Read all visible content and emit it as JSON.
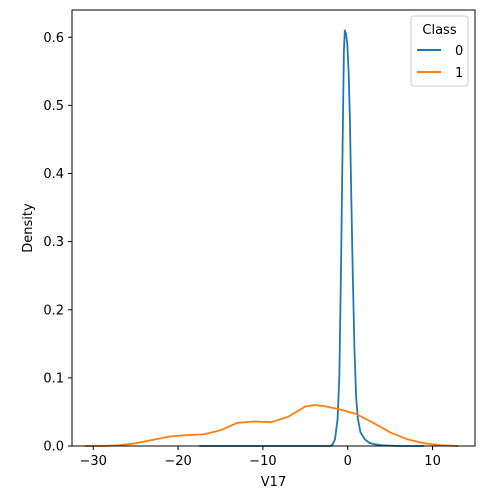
{
  "chart_data": {
    "type": "line",
    "title": "",
    "xlabel": "V17",
    "ylabel": "Density",
    "xlim": [
      -32.5,
      15.0
    ],
    "ylim": [
      0,
      0.64
    ],
    "xticks": [
      -30,
      -20,
      -10,
      0,
      10
    ],
    "xtick_labels": [
      "−30",
      "−20",
      "−10",
      "0",
      "10"
    ],
    "yticks": [
      0.0,
      0.1,
      0.2,
      0.3,
      0.4,
      0.5,
      0.6
    ],
    "ytick_labels": [
      "0.0",
      "0.1",
      "0.2",
      "0.3",
      "0.4",
      "0.5",
      "0.6"
    ],
    "grid": false,
    "legend": {
      "title": "Class",
      "placement": "top-right"
    },
    "series": [
      {
        "name": "0",
        "color": "#1f77b4",
        "points": [
          [
            -17.5,
            0.0
          ],
          [
            -10,
            0.0
          ],
          [
            -5,
            0.0
          ],
          [
            -2.0,
            0.0
          ],
          [
            -1.8,
            0.002
          ],
          [
            -1.5,
            0.01
          ],
          [
            -1.2,
            0.04
          ],
          [
            -1.0,
            0.1
          ],
          [
            -0.8,
            0.25
          ],
          [
            -0.6,
            0.44
          ],
          [
            -0.45,
            0.58
          ],
          [
            -0.35,
            0.61
          ],
          [
            -0.2,
            0.605
          ],
          [
            -0.05,
            0.59
          ],
          [
            0.1,
            0.55
          ],
          [
            0.25,
            0.48
          ],
          [
            0.4,
            0.38
          ],
          [
            0.6,
            0.25
          ],
          [
            0.8,
            0.14
          ],
          [
            1.0,
            0.07
          ],
          [
            1.2,
            0.04
          ],
          [
            1.5,
            0.02
          ],
          [
            2.0,
            0.01
          ],
          [
            2.5,
            0.005
          ],
          [
            3.0,
            0.003
          ],
          [
            4.0,
            0.001
          ],
          [
            6.0,
            0.0
          ],
          [
            9.0,
            0.0
          ]
        ]
      },
      {
        "name": "1",
        "color": "#ff7f0e",
        "points": [
          [
            -31.0,
            0.0
          ],
          [
            -29.0,
            0.0
          ],
          [
            -27.0,
            0.001
          ],
          [
            -25.0,
            0.004
          ],
          [
            -23.0,
            0.009
          ],
          [
            -21.0,
            0.014
          ],
          [
            -19.0,
            0.016
          ],
          [
            -17.0,
            0.017
          ],
          [
            -15.0,
            0.023
          ],
          [
            -13.0,
            0.034
          ],
          [
            -11.0,
            0.036
          ],
          [
            -9.0,
            0.035
          ],
          [
            -7.0,
            0.043
          ],
          [
            -5.0,
            0.058
          ],
          [
            -4.0,
            0.06
          ],
          [
            -3.0,
            0.059
          ],
          [
            -1.0,
            0.054
          ],
          [
            1.0,
            0.047
          ],
          [
            3.0,
            0.034
          ],
          [
            5.0,
            0.02
          ],
          [
            7.0,
            0.01
          ],
          [
            9.0,
            0.004
          ],
          [
            11.0,
            0.001
          ],
          [
            13.0,
            0.0
          ]
        ]
      }
    ]
  }
}
